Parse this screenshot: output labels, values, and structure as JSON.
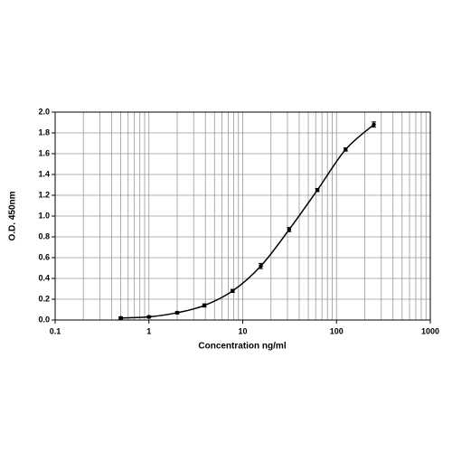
{
  "chart_data": {
    "type": "scatter",
    "x_label": "Concentration ng/ml",
    "y_label": "O.D. 450nm",
    "x": [
      0.5,
      1,
      2,
      3.9,
      7.8,
      15.6,
      31.25,
      62.5,
      125,
      250
    ],
    "values": [
      0.02,
      0.03,
      0.07,
      0.14,
      0.28,
      0.52,
      0.87,
      1.25,
      1.64,
      1.88
    ],
    "errors": [
      0.01,
      0.01,
      0.01,
      0.015,
      0.015,
      0.025,
      0.02,
      0.015,
      0.015,
      0.025
    ],
    "color": "#000000",
    "xlog": true,
    "xlim": [
      0.1,
      1000
    ],
    "xticks": [
      0.1,
      1,
      10,
      100,
      1000
    ],
    "ylim": [
      0,
      2
    ],
    "yticks": [
      {
        "value": 0,
        "label": "0.0"
      },
      0.2,
      0.4,
      0.6,
      0.8,
      {
        "value": 1,
        "label": "1.0"
      },
      1.2,
      1.4,
      1.6,
      1.8,
      {
        "value": 2,
        "label": "2.0"
      }
    ],
    "grid": true
  }
}
